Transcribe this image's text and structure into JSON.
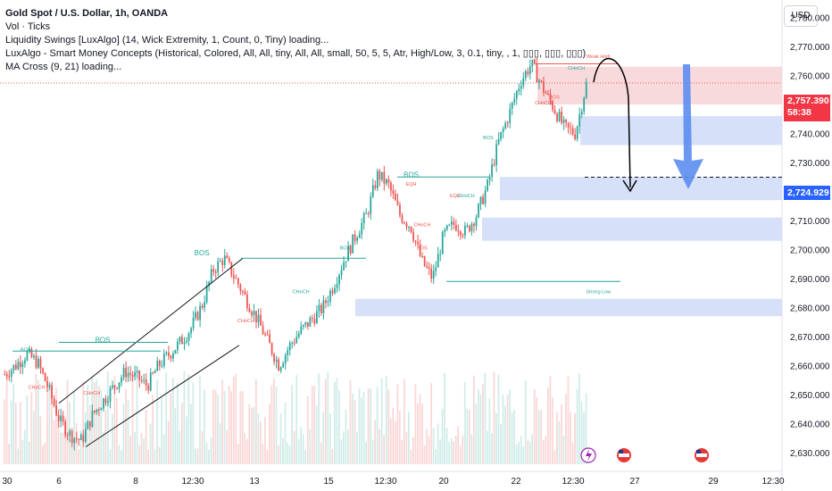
{
  "legend": {
    "title": "Gold Spot / U.S. Dollar, 1h, OANDA",
    "line2": "Vol · Ticks",
    "line3": "Liquidity Swings [LuxAlgo] (14, Wick Extremity, 1, Count, 0, Tiny) loading...",
    "line4": "LuxAlgo - Smart Money Concepts (Historical, Colored, All, All, tiny, All, All, small, 50, 5, 5, Atr, High/Low, 3, 0.1, tiny, , 1, ▯▯▯, ▯▯▯, ▯▯▯)",
    "line5": "MA Cross (9, 21) loading..."
  },
  "currency_button": "USD",
  "price_tags": {
    "current_price": "2,757.390",
    "countdown": "58:38",
    "target_price": "2,724.929"
  },
  "colors": {
    "up": "#26a69a",
    "down": "#ef5350",
    "zone_blue": "#cfdcf8",
    "zone_red": "#f8d3d6",
    "arrow_blue": "#5b8def",
    "structure_green": "#26a69a",
    "structure_red": "#ef5350"
  },
  "chart_data": {
    "type": "candlestick",
    "ylim": [
      2626,
      2786
    ],
    "y_ticks": [
      "2,780.000",
      "2,770.000",
      "2,760.000",
      "2,750.000",
      "2,740.000",
      "2,730.000",
      "2,720.000",
      "2,710.000",
      "2,700.000",
      "2,690.000",
      "2,680.000",
      "2,670.000",
      "2,660.000",
      "2,650.000",
      "2,640.000",
      "2,630.000"
    ],
    "x_ticks": [
      "30",
      "6",
      "8",
      "12:30",
      "13",
      "15",
      "12:30",
      "20",
      "22",
      "12:30",
      "27",
      "29",
      "12:30"
    ],
    "price_path": [
      [
        2657,
        2657
      ],
      [
        2660,
        2660
      ],
      [
        2665,
        2664
      ],
      [
        2661,
        2661
      ],
      [
        2652,
        2652
      ],
      [
        2641,
        2641
      ],
      [
        2636,
        2636
      ],
      [
        2634,
        2634
      ],
      [
        2643,
        2643
      ],
      [
        2648,
        2648
      ],
      [
        2653,
        2653
      ],
      [
        2658,
        2658
      ],
      [
        2656,
        2656
      ],
      [
        2653,
        2653
      ],
      [
        2660,
        2660
      ],
      [
        2664,
        2664
      ],
      [
        2668,
        2668
      ],
      [
        2673,
        2673
      ],
      [
        2681,
        2681
      ],
      [
        2693,
        2693
      ],
      [
        2697,
        2697
      ],
      [
        2690,
        2690
      ],
      [
        2683,
        2683
      ],
      [
        2676,
        2676
      ],
      [
        2668,
        2668
      ],
      [
        2660,
        2660
      ],
      [
        2667,
        2667
      ],
      [
        2672,
        2672
      ],
      [
        2676,
        2676
      ],
      [
        2680,
        2680
      ],
      [
        2688,
        2688
      ],
      [
        2697,
        2697
      ],
      [
        2705,
        2705
      ],
      [
        2712,
        2712
      ],
      [
        2726,
        2726
      ],
      [
        2722,
        2722
      ],
      [
        2712,
        2712
      ],
      [
        2708,
        2708
      ],
      [
        2696,
        2696
      ],
      [
        2690,
        2690
      ],
      [
        2705,
        2705
      ],
      [
        2709,
        2709
      ],
      [
        2706,
        2706
      ],
      [
        2712,
        2712
      ],
      [
        2722,
        2722
      ],
      [
        2737,
        2737
      ],
      [
        2747,
        2747
      ],
      [
        2758,
        2758
      ],
      [
        2764,
        2764
      ],
      [
        2756,
        2756
      ],
      [
        2749,
        2749
      ],
      [
        2742,
        2742
      ],
      [
        2740,
        2740
      ],
      [
        2757,
        2757
      ]
    ],
    "structure_labels": [
      {
        "text": "BOS",
        "x": 2,
        "y": 2665,
        "color": "green"
      },
      {
        "text": "BOS",
        "x": 9,
        "y": 2668,
        "color": "green"
      },
      {
        "text": "BOS",
        "x": 18,
        "y": 2698,
        "color": "green"
      },
      {
        "text": "BOS",
        "x": 31,
        "y": 2700,
        "color": "green"
      },
      {
        "text": "BOS",
        "x": 37,
        "y": 2725,
        "color": "green"
      },
      {
        "text": "BOS",
        "x": 44,
        "y": 2738,
        "color": "green"
      },
      {
        "text": "CHoCH",
        "x": 3,
        "y": 2652,
        "color": "red"
      },
      {
        "text": "CHoCH",
        "x": 8,
        "y": 2650,
        "color": "red"
      },
      {
        "text": "CHoCH",
        "x": 22,
        "y": 2675,
        "color": "red"
      },
      {
        "text": "CHoCH",
        "x": 27,
        "y": 2685,
        "color": "green"
      },
      {
        "text": "CHoCH",
        "x": 38,
        "y": 2708,
        "color": "red"
      },
      {
        "text": "EQH",
        "x": 37,
        "y": 2722,
        "color": "red"
      },
      {
        "text": "EQH",
        "x": 41,
        "y": 2718,
        "color": "red"
      },
      {
        "text": "CHoCH",
        "x": 42,
        "y": 2718,
        "color": "green"
      },
      {
        "text": "BOS",
        "x": 38,
        "y": 2700,
        "color": "red"
      },
      {
        "text": "CHoCH",
        "x": 49,
        "y": 2750,
        "color": "red"
      },
      {
        "text": "BOS",
        "x": 50,
        "y": 2752,
        "color": "red"
      },
      {
        "text": "CHoCH",
        "x": 52,
        "y": 2762,
        "color": "green"
      },
      {
        "text": "Strong Low",
        "x": 54,
        "y": 2685,
        "color": "green"
      },
      {
        "text": "Weak High",
        "x": 54,
        "y": 2766,
        "color": "red"
      }
    ],
    "zones": [
      {
        "kind": "supply",
        "from": 2750,
        "to": 2763
      },
      {
        "kind": "demand",
        "from": 2736,
        "to": 2746
      },
      {
        "kind": "demand",
        "from": 2717,
        "to": 2725
      },
      {
        "kind": "demand",
        "from": 2703,
        "to": 2711
      },
      {
        "kind": "demand",
        "from": 2677,
        "to": 2683
      }
    ],
    "target_level": 2724.929,
    "current_level": 2757.39,
    "grid": false
  }
}
